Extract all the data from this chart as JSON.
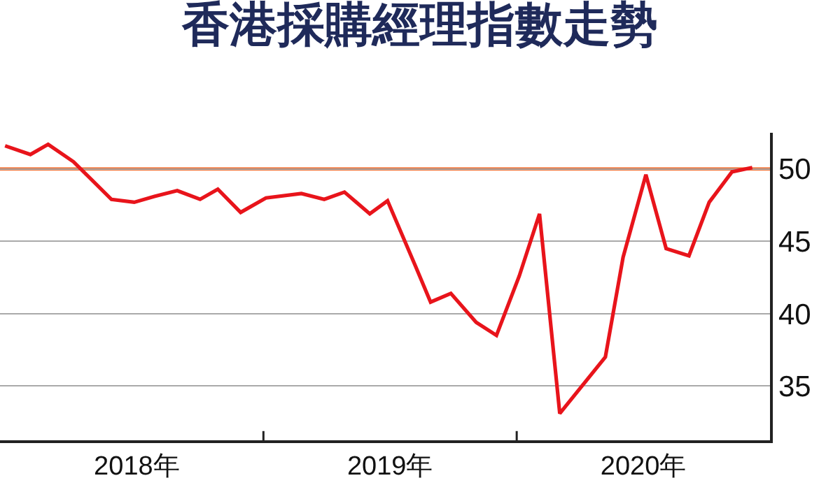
{
  "chart_data": {
    "type": "line",
    "title": "香港採購經理指數走勢",
    "x": [
      2017.98,
      2018.08,
      2018.15,
      2018.25,
      2018.4,
      2018.49,
      2018.57,
      2018.66,
      2018.75,
      2018.82,
      2018.91,
      2019.01,
      2019.15,
      2019.24,
      2019.32,
      2019.42,
      2019.49,
      2019.6,
      2019.66,
      2019.74,
      2019.84,
      2019.92,
      2020.01,
      2020.09,
      2020.17,
      2020.35,
      2020.42,
      2020.51,
      2020.59,
      2020.68,
      2020.76,
      2020.85,
      2020.93
    ],
    "series": [
      {
        "color": "#e8141b",
        "values": [
          51.6,
          51.0,
          51.7,
          50.5,
          47.9,
          47.7,
          48.1,
          48.5,
          47.9,
          48.6,
          47.0,
          48.0,
          48.3,
          47.9,
          48.4,
          46.9,
          47.8,
          43.3,
          40.8,
          41.4,
          39.4,
          38.5,
          42.6,
          46.9,
          33.1,
          37.0,
          43.9,
          49.6,
          44.5,
          44.0,
          47.7,
          49.8,
          50.1
        ]
      }
    ],
    "xlim": [
      2017.96,
      2021.0
    ],
    "xticks": [
      {
        "value": 2018.5,
        "label": "2018年"
      },
      {
        "value": 2019,
        "label": null
      },
      {
        "value": 2019.5,
        "label": "2019年"
      },
      {
        "value": 2020,
        "label": null
      },
      {
        "value": 2020.5,
        "label": "2020年"
      }
    ],
    "ylim": [
      31.25,
      52.5
    ],
    "yticks": [
      35,
      40,
      45,
      50
    ],
    "ref_lines": [
      {
        "axis": "y",
        "value": 50,
        "color": "#f26522"
      }
    ],
    "grid": "y",
    "marker": "none",
    "line_style": "solid"
  }
}
